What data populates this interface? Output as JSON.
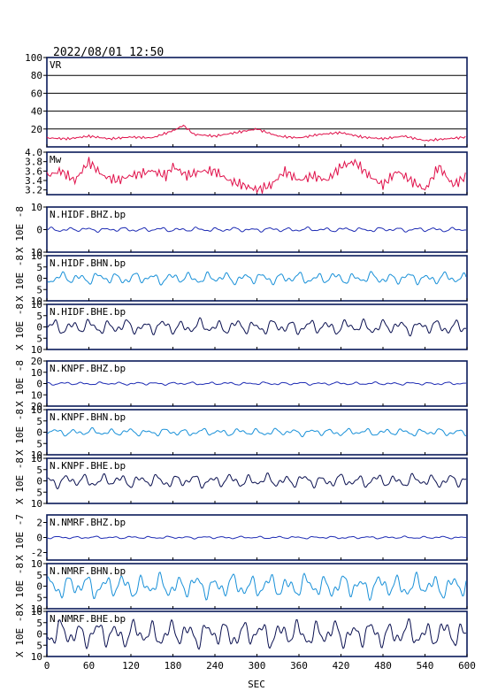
{
  "header": {
    "timestamp": "2022/08/01 12:50"
  },
  "colors": {
    "frame": "#0a1a5a",
    "vr": "#e0104a",
    "mw": "#e0104a",
    "bhz": "#1e2cb4",
    "bhn": "#1890d8",
    "bhe": "#0a1050"
  },
  "chart_data": {
    "type": "line",
    "xlabel": "SEC",
    "xlim": [
      0,
      600
    ],
    "xticks": [
      "0",
      "60",
      "120",
      "180",
      "240",
      "300",
      "360",
      "420",
      "480",
      "540",
      "600"
    ],
    "panels": [
      {
        "id": "vr",
        "label": "VR",
        "ylabel": "",
        "ylim": [
          0,
          100
        ],
        "yticks": [
          "100",
          "80",
          "60",
          "40",
          "20"
        ],
        "ytick_values": [
          100,
          80,
          60,
          40,
          20
        ],
        "grid": true,
        "color_key": "vr",
        "series": {
          "x": [
            0,
            30,
            60,
            90,
            120,
            150,
            180,
            195,
            210,
            240,
            270,
            300,
            330,
            360,
            390,
            420,
            450,
            480,
            510,
            540,
            570,
            600
          ],
          "y": [
            10,
            9,
            12,
            9,
            11,
            10,
            18,
            24,
            14,
            12,
            16,
            20,
            12,
            10,
            14,
            16,
            11,
            9,
            12,
            7,
            9,
            11
          ]
        }
      },
      {
        "id": "mw",
        "label": "Mw",
        "ylabel": "",
        "ylim": [
          3.1,
          4.0
        ],
        "yticks": [
          "4.0",
          "3.8",
          "3.6",
          "3.4",
          "3.2"
        ],
        "ytick_values": [
          4.0,
          3.8,
          3.6,
          3.4,
          3.2
        ],
        "grid": false,
        "color_key": "mw",
        "series": {
          "x": [
            0,
            20,
            40,
            60,
            80,
            100,
            120,
            150,
            170,
            180,
            200,
            220,
            240,
            260,
            280,
            300,
            320,
            340,
            360,
            380,
            400,
            420,
            440,
            460,
            480,
            500,
            520,
            540,
            560,
            580,
            600
          ],
          "y": [
            3.5,
            3.6,
            3.4,
            3.8,
            3.5,
            3.4,
            3.5,
            3.6,
            3.5,
            3.7,
            3.5,
            3.6,
            3.6,
            3.4,
            3.3,
            3.2,
            3.3,
            3.6,
            3.4,
            3.5,
            3.4,
            3.7,
            3.8,
            3.5,
            3.3,
            3.6,
            3.4,
            3.2,
            3.7,
            3.3,
            3.5
          ]
        }
      },
      {
        "id": "hidf-bhz",
        "label": "N.HIDF.BHZ.bp",
        "ylabel": "X 10E -8",
        "ylim": [
          -10,
          10
        ],
        "yticks": [
          "10",
          "0",
          "10"
        ],
        "ytick_values": [
          10,
          0,
          -10
        ],
        "grid": false,
        "color_key": "bhz",
        "series": {
          "x": [
            0,
            60,
            120,
            180,
            240,
            300,
            360,
            420,
            480,
            540,
            600
          ],
          "y": [
            0,
            0,
            0,
            0,
            0,
            0,
            0,
            0,
            0,
            0,
            0
          ]
        }
      },
      {
        "id": "hidf-bhn",
        "label": "N.HIDF.BHN.bp",
        "ylabel": "X 10E -8",
        "ylim": [
          -10,
          10
        ],
        "yticks": [
          "10",
          "5",
          "0",
          "5",
          "10"
        ],
        "ytick_values": [
          10,
          5,
          0,
          -5,
          -10
        ],
        "grid": false,
        "color_key": "bhn",
        "series": {
          "x": [
            0,
            60,
            120,
            180,
            240,
            300,
            360,
            420,
            480,
            540,
            600
          ],
          "y": [
            0,
            0,
            0,
            0,
            0,
            0,
            0,
            0,
            0,
            0,
            0
          ]
        }
      },
      {
        "id": "hidf-bhe",
        "label": "N.HIDF.BHE.bp",
        "ylabel": "X 10E -8",
        "ylim": [
          -10,
          10
        ],
        "yticks": [
          "10",
          "5",
          "0",
          "5",
          "10"
        ],
        "ytick_values": [
          10,
          5,
          0,
          -5,
          -10
        ],
        "grid": false,
        "color_key": "bhe",
        "series": {
          "x": [
            0,
            60,
            120,
            180,
            240,
            300,
            360,
            420,
            480,
            540,
            600
          ],
          "y": [
            0,
            0,
            0,
            0,
            0,
            0,
            0,
            0,
            0,
            0,
            0
          ]
        }
      },
      {
        "id": "knpf-bhz",
        "label": "N.KNPF.BHZ.bp",
        "ylabel": "X 10E -8",
        "ylim": [
          -20,
          20
        ],
        "yticks": [
          "20",
          "10",
          "0",
          "10",
          "20"
        ],
        "ytick_values": [
          20,
          10,
          0,
          -10,
          -20
        ],
        "grid": false,
        "color_key": "bhz",
        "series": {
          "x": [
            0,
            60,
            120,
            180,
            240,
            300,
            360,
            420,
            480,
            540,
            600
          ],
          "y": [
            0,
            0,
            0,
            0,
            0,
            0,
            0,
            0,
            0,
            0,
            0
          ]
        }
      },
      {
        "id": "knpf-bhn",
        "label": "N.KNPF.BHN.bp",
        "ylabel": "X 10E -8",
        "ylim": [
          -10,
          10
        ],
        "yticks": [
          "10",
          "5",
          "0",
          "5",
          "10"
        ],
        "ytick_values": [
          10,
          5,
          0,
          -5,
          -10
        ],
        "grid": false,
        "color_key": "bhn",
        "series": {
          "x": [
            0,
            60,
            120,
            180,
            240,
            300,
            360,
            420,
            480,
            540,
            600
          ],
          "y": [
            0,
            0,
            0,
            0,
            0,
            0,
            0,
            0,
            0,
            0,
            0
          ]
        }
      },
      {
        "id": "knpf-bhe",
        "label": "N.KNPF.BHE.bp",
        "ylabel": "X 10E -8",
        "ylim": [
          -10,
          10
        ],
        "yticks": [
          "10",
          "5",
          "0",
          "5",
          "10"
        ],
        "ytick_values": [
          10,
          5,
          0,
          -5,
          -10
        ],
        "grid": false,
        "color_key": "bhe",
        "series": {
          "x": [
            0,
            60,
            120,
            180,
            240,
            300,
            360,
            420,
            480,
            540,
            600
          ],
          "y": [
            0,
            0,
            0,
            0,
            0,
            0,
            0,
            0,
            0,
            0,
            0
          ]
        }
      },
      {
        "id": "nmrf-bhz",
        "label": "N.NMRF.BHZ.bp",
        "ylabel": "X 10E -7",
        "ylim": [
          -3,
          3
        ],
        "yticks": [
          "2",
          "0",
          "-2"
        ],
        "ytick_values": [
          2,
          0,
          -2
        ],
        "grid": false,
        "color_key": "bhz",
        "series": {
          "x": [
            0,
            60,
            120,
            180,
            240,
            300,
            360,
            420,
            480,
            540,
            600
          ],
          "y": [
            0,
            0,
            0,
            0,
            0,
            0,
            0,
            0,
            0,
            0,
            0
          ]
        }
      },
      {
        "id": "nmrf-bhn",
        "label": "N.NMRF.BHN.bp",
        "ylabel": "X 10E -8",
        "ylim": [
          -10,
          10
        ],
        "yticks": [
          "10",
          "5",
          "0",
          "5",
          "10"
        ],
        "ytick_values": [
          10,
          5,
          0,
          -5,
          -10
        ],
        "grid": false,
        "color_key": "bhn",
        "series": {
          "x": [
            0,
            60,
            120,
            180,
            240,
            300,
            360,
            420,
            480,
            540,
            600
          ],
          "y": [
            0,
            0,
            0,
            0,
            0,
            0,
            0,
            0,
            0,
            0,
            0
          ]
        }
      },
      {
        "id": "nmrf-bhe",
        "label": "N.NMRF.BHE.bp",
        "ylabel": "X 10E -8",
        "ylim": [
          -10,
          10
        ],
        "yticks": [
          "10",
          "5",
          "0",
          "5",
          "10"
        ],
        "ytick_values": [
          10,
          5,
          0,
          -5,
          -10
        ],
        "grid": false,
        "color_key": "bhe",
        "series": {
          "x": [
            0,
            60,
            120,
            180,
            240,
            300,
            360,
            420,
            480,
            540,
            600
          ],
          "y": [
            0,
            0,
            0,
            0,
            0,
            0,
            0,
            0,
            0,
            0,
            0
          ]
        }
      }
    ]
  }
}
